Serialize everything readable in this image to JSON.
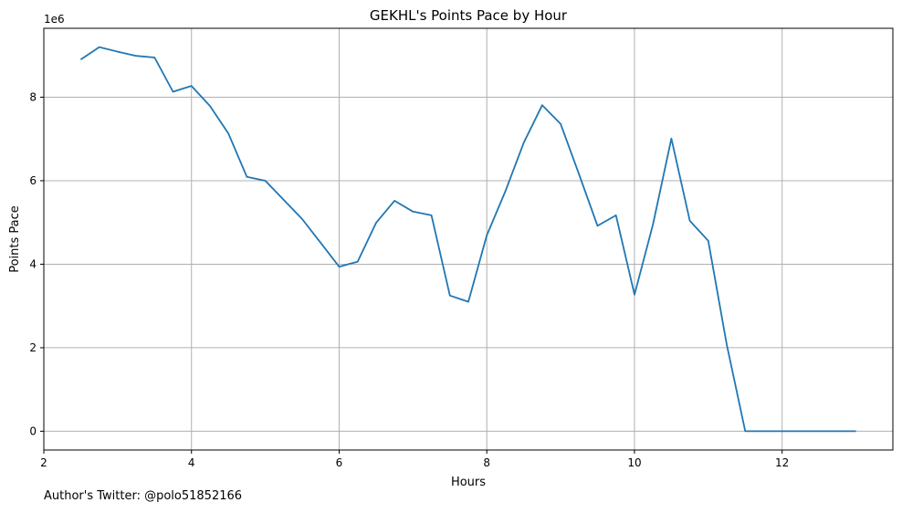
{
  "chart_data": {
    "type": "line",
    "title": "GEKHL's Points Pace by Hour",
    "xlabel": "Hours",
    "ylabel": "Points Pace",
    "y_offset_label": "1e6",
    "xlim": [
      2.0,
      13.5
    ],
    "ylim": [
      -0.45,
      9.65
    ],
    "x_ticks": [
      2,
      4,
      6,
      8,
      10,
      12
    ],
    "y_ticks": [
      0,
      2,
      4,
      6,
      8
    ],
    "grid": true,
    "line_color": "#1f77b4",
    "series": [
      {
        "x": [
          2.5,
          2.75,
          3.0,
          3.25,
          3.5,
          3.75,
          4.0,
          4.25,
          4.5,
          4.75,
          5.0,
          5.25,
          5.5,
          5.75,
          6.0,
          6.25,
          6.5,
          6.75,
          7.0,
          7.25,
          7.5,
          7.75,
          8.0,
          8.25,
          8.5,
          8.75,
          9.0,
          9.25,
          9.5,
          9.75,
          10.0,
          10.25,
          10.5,
          10.75,
          11.0,
          11.25,
          11.5,
          11.75,
          12.0,
          12.25,
          12.5,
          12.75,
          13.0
        ],
        "values": [
          8.9,
          9.2,
          9.09,
          8.99,
          8.95,
          8.13,
          8.27,
          7.79,
          7.13,
          6.09,
          6.0,
          5.54,
          5.08,
          4.51,
          3.94,
          4.06,
          4.99,
          5.52,
          5.26,
          5.17,
          3.25,
          3.1,
          4.69,
          5.74,
          6.91,
          7.81,
          7.36,
          6.15,
          4.92,
          5.17,
          3.27,
          4.95,
          7.01,
          5.04,
          4.56,
          2.08,
          0.0,
          0.0,
          0.0,
          0.0,
          0.0,
          0.0,
          0.0
        ]
      }
    ]
  },
  "footer": {
    "text": "Author's Twitter: @polo51852166"
  }
}
